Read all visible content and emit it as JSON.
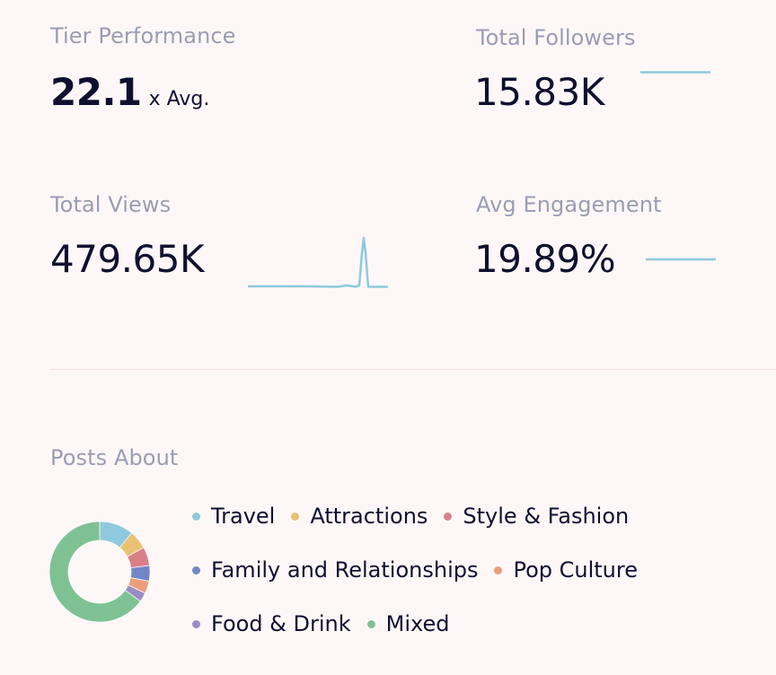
{
  "tier": {
    "label": "Tier Performance",
    "value": "22.1",
    "suffix": "x Avg."
  },
  "followers": {
    "label": "Total Followers",
    "value": "15.83K"
  },
  "views": {
    "label": "Total Views",
    "value": "479.65K"
  },
  "engagement": {
    "label": "Avg Engagement",
    "value": "19.89%"
  },
  "sparkline_color": "#8ec9dd",
  "divider_color": "#f3dfe3",
  "posts_about": {
    "label": "Posts About",
    "legend": [
      {
        "name": "Travel",
        "color": "#8ec9dd"
      },
      {
        "name": "Attractions",
        "color": "#e8c270"
      },
      {
        "name": "Style & Fashion",
        "color": "#db7f87"
      },
      {
        "name": "Family and Relationships",
        "color": "#6f86c7"
      },
      {
        "name": "Pop Culture",
        "color": "#eb9e79"
      },
      {
        "name": "Food & Drink",
        "color": "#9b8bc4"
      },
      {
        "name": "Mixed",
        "color": "#7ec293"
      }
    ],
    "chart_data": {
      "type": "pie",
      "categories": [
        "Travel",
        "Attractions",
        "Style & Fashion",
        "Family and Relationships",
        "Pop Culture",
        "Food & Drink",
        "Mixed"
      ],
      "values": [
        11,
        6,
        6,
        5,
        4,
        3,
        65
      ]
    }
  }
}
